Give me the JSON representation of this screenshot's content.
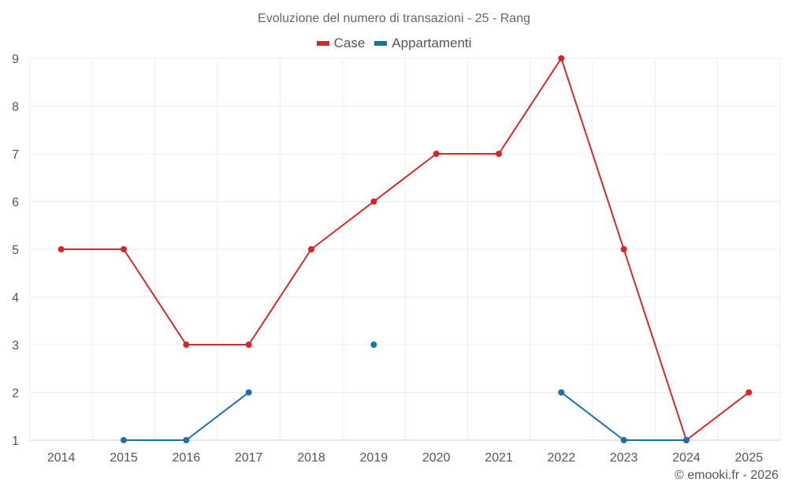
{
  "colors": {
    "case": "#d62728",
    "appartamenti": "#1f6fa8",
    "grid": "#ececec",
    "axis": "#cccccc"
  },
  "chart_data": {
    "type": "line",
    "title": "Evoluzione del numero di transazioni - 25 - Rang",
    "xlabel": "",
    "ylabel": "",
    "categories": [
      "2014",
      "2015",
      "2016",
      "2017",
      "2018",
      "2019",
      "2020",
      "2021",
      "2022",
      "2023",
      "2024",
      "2025"
    ],
    "ylim": [
      1,
      9
    ],
    "yticks": [
      1,
      2,
      3,
      4,
      5,
      6,
      7,
      8,
      9
    ],
    "grid": true,
    "legend_position": "top-center",
    "series": [
      {
        "name": "Case",
        "color_key": "case",
        "values": [
          5,
          5,
          3,
          3,
          5,
          6,
          7,
          7,
          9,
          5,
          1,
          2
        ]
      },
      {
        "name": "Appartamenti",
        "color_key": "appartamenti",
        "values": [
          null,
          1,
          1,
          2,
          null,
          3,
          null,
          null,
          2,
          1,
          1,
          null
        ]
      }
    ]
  },
  "credit": "© emooki.fr - 2026"
}
